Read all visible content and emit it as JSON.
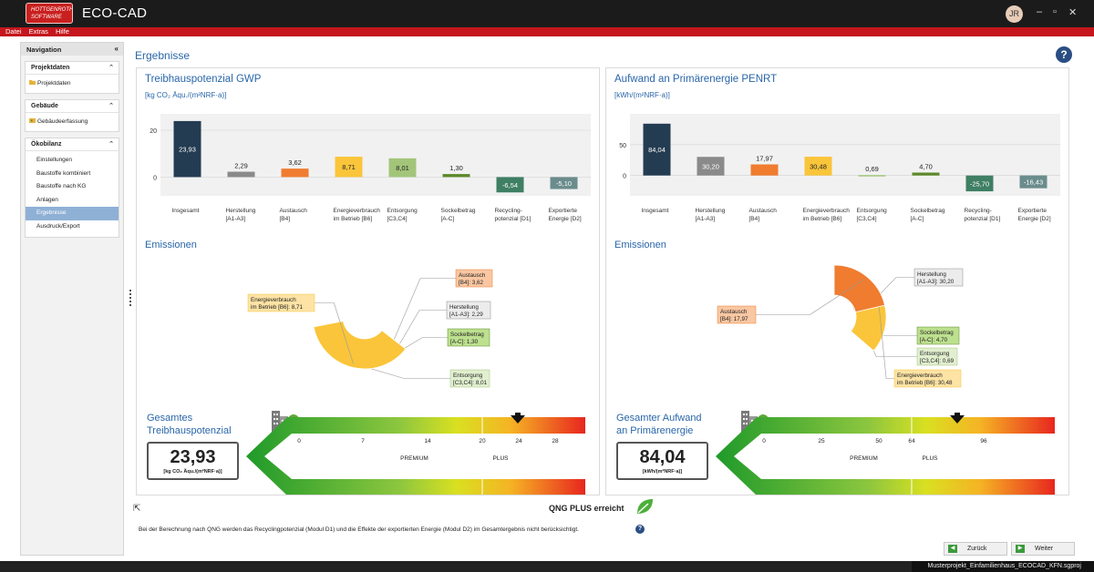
{
  "app": {
    "title": "ECO-CAD",
    "logo_line1": "HOTTGENROTH",
    "logo_line2": "SOFTWARE",
    "user_initials": "JR",
    "window_buttons": {
      "minimize": "–",
      "restore": "▫",
      "close": "✕"
    }
  },
  "menu": [
    "Datei",
    "Extras",
    "Hilfe"
  ],
  "nav": {
    "title": "Navigation",
    "collapse": "«",
    "groups": [
      {
        "title": "Projektdaten",
        "items": [
          "Projektdaten"
        ]
      },
      {
        "title": "Gebäude",
        "items": [
          "Gebäudeerfassung"
        ]
      },
      {
        "title": "Ökobilanz",
        "items": [
          "Einstellungen",
          "Baustoffe kombiniert",
          "Baustoffe nach KG",
          "Anlagen",
          "Ergebnisse",
          "Ausdruck/Export"
        ],
        "selected": "Ergebnisse"
      }
    ]
  },
  "page": {
    "title": "Ergebnisse",
    "help": "?"
  },
  "gwp": {
    "title": "Treibhauspotenzial GWP",
    "unit": "[kg CO₂ Äqu./(m²NRF·a)]",
    "emissions_title": "Emissionen",
    "total_title_line1": "Gesamtes",
    "total_title_line2": "Treibhauspotenzial",
    "total_value": "23,93",
    "total_unit": "[kg CO₂ Äqu./(m²NRF·a)]",
    "scale_ticks": [
      "0",
      "7",
      "14",
      "20",
      "24",
      "28"
    ],
    "scale_labels": [
      "PREMIUM",
      "PLUS"
    ]
  },
  "penrt": {
    "title": "Aufwand an Primärenergie PENRT",
    "unit": "[kWh/(m²NRF·a)]",
    "emissions_title": "Emissionen",
    "total_title_line1": "Gesamter Aufwand",
    "total_title_line2": "an Primärenergie",
    "total_value": "84,04",
    "total_unit": "[kWh/(m²NRF·a)]",
    "scale_ticks": [
      "0",
      "25",
      "50",
      "64",
      "96"
    ],
    "scale_labels": [
      "PREMIUM",
      "PLUS"
    ]
  },
  "chart_data": [
    {
      "type": "bar",
      "title": "Treibhauspotenzial GWP",
      "ylabel": "[kg CO₂ Äqu./(m²NRF·a)]",
      "ylim": [
        -8,
        27
      ],
      "yticks": [
        "20",
        "0"
      ],
      "categories": [
        [
          "Insgesamt"
        ],
        [
          "Herstellung",
          "[A1-A3]"
        ],
        [
          "Austausch",
          "[B4]"
        ],
        [
          "Energieverbrauch",
          "im Betrieb [B6]"
        ],
        [
          "Entsorgung",
          "[C3,C4]"
        ],
        [
          "Sockelbetrag",
          "[A-C]"
        ],
        [
          "Recycling-",
          "potenzial [D1]"
        ],
        [
          "Exportierte",
          "Energie [D2]"
        ]
      ],
      "values": [
        23.93,
        2.29,
        3.62,
        8.71,
        8.01,
        1.3,
        -6.54,
        -5.1
      ],
      "labels": [
        "23,93",
        "2,29",
        "3,62",
        "8,71",
        "8,01",
        "1,30",
        "-6,54",
        "-5,10"
      ],
      "colors": [
        "#243c52",
        "#8a8a8a",
        "#f07c30",
        "#fac53a",
        "#a3c57a",
        "#5c8a2a",
        "#3f7f64",
        "#6b8c8c"
      ]
    },
    {
      "type": "bar",
      "title": "Aufwand an Primärenergie PENRT",
      "ylabel": "[kWh/(m²NRF·a)]",
      "ylim": [
        -33,
        100
      ],
      "yticks": [
        "50",
        "0"
      ],
      "categories": [
        [
          "Insgesamt"
        ],
        [
          "Herstellung",
          "[A1-A3]"
        ],
        [
          "Austausch",
          "[B4]"
        ],
        [
          "Energieverbrauch",
          "im Betrieb [B6]"
        ],
        [
          "Entsorgung",
          "[C3,C4]"
        ],
        [
          "Sockelbetrag",
          "[A-C]"
        ],
        [
          "Recycling-",
          "potenzial [D1]"
        ],
        [
          "Exportierte",
          "Energie [D2]"
        ]
      ],
      "values": [
        84.04,
        30.2,
        17.97,
        30.48,
        0.69,
        4.7,
        -25.7,
        -16.43
      ],
      "labels": [
        "84,04",
        "30,20",
        "17,97",
        "30,48",
        "0,69",
        "4,70",
        "-25,70",
        "-16,43"
      ],
      "colors": [
        "#243c52",
        "#8a8a8a",
        "#f07c30",
        "#fac53a",
        "#a3c57a",
        "#5c8a2a",
        "#3f7f64",
        "#6b8c8c"
      ]
    },
    {
      "type": "pie",
      "title": "Emissionen",
      "slices": [
        {
          "label": [
            "Austausch",
            "[B4]: 3,62"
          ],
          "value": 3.62,
          "color": "#f07c30",
          "label_bg": "#f9c7a2"
        },
        {
          "label": [
            "Herstellung",
            "[A1-A3]: 2,29"
          ],
          "value": 2.29,
          "color": "#8a8a8a",
          "label_bg": "#ececec"
        },
        {
          "label": [
            "Sockelbetrag",
            "[A-C]: 1,30"
          ],
          "value": 1.3,
          "color": "#5c8a2a",
          "label_bg": "#bde08f"
        },
        {
          "label": [
            "Entsorgung",
            "[C3,C4]: 8,01"
          ],
          "value": 8.01,
          "color": "#a3c57a",
          "label_bg": "#e1efcf"
        },
        {
          "label": [
            "Energieverbrauch",
            "im Betrieb [B6]: 8,71"
          ],
          "value": 8.71,
          "color": "#fac53a",
          "label_bg": "#fde3a4"
        }
      ]
    },
    {
      "type": "pie",
      "title": "Emissionen",
      "slices": [
        {
          "label": [
            "Herstellung",
            "[A1-A3]: 30,20"
          ],
          "value": 30.2,
          "color": "#8a8a8a",
          "label_bg": "#ececec"
        },
        {
          "label": [
            "Sockelbetrag",
            "[A-C]: 4,70"
          ],
          "value": 4.7,
          "color": "#5c8a2a",
          "label_bg": "#bde08f"
        },
        {
          "label": [
            "Entsorgung",
            "[C3,C4]: 0,69"
          ],
          "value": 0.69,
          "color": "#a3c57a",
          "label_bg": "#e1efcf"
        },
        {
          "label": [
            "Energieverbrauch",
            "im Betrieb [B6]: 30,48"
          ],
          "value": 30.48,
          "color": "#fac53a",
          "label_bg": "#fde3a4"
        },
        {
          "label": [
            "Austausch",
            "[B4]: 17,97"
          ],
          "value": 17.97,
          "color": "#f07c30",
          "label_bg": "#f9c7a2"
        }
      ]
    }
  ],
  "footer": {
    "qng": "QNG PLUS erreicht",
    "note": "Bei der Berechnung nach QNG werden das Recyclingpotenzial (Modul D1) und die Effekte der exportierten Energie (Modul D2) im Gesamtergebnis nicht berücksichtigt.",
    "back": "Zurück",
    "next": "Weiter",
    "status": "Musterprojekt_Einfamilienhaus_ECOCAD_KFN.sgproj"
  }
}
